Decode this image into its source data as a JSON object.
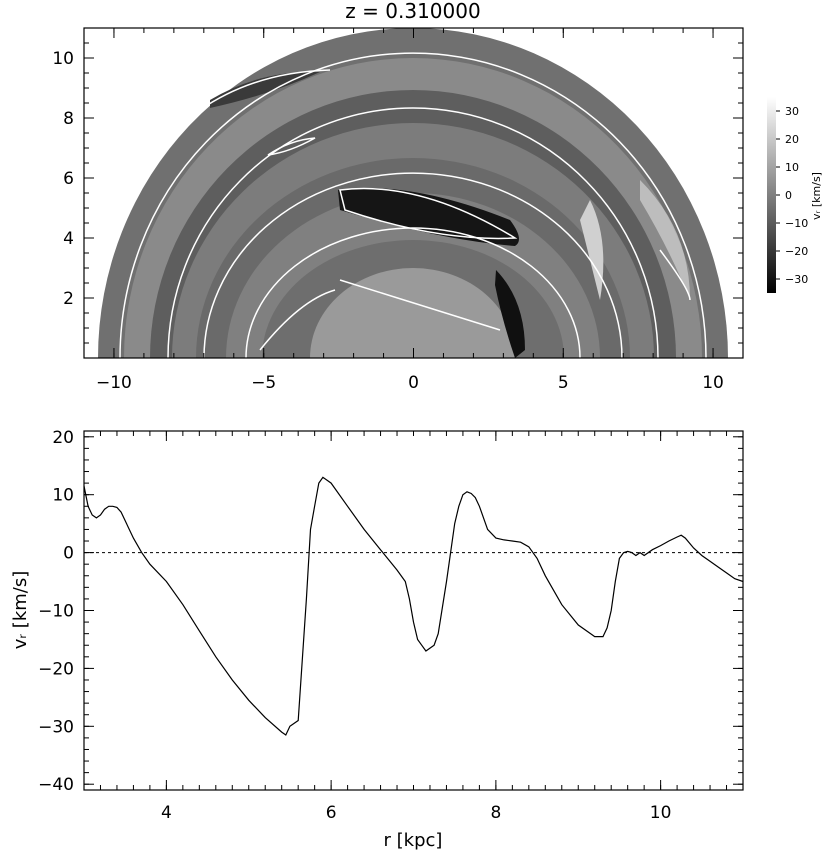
{
  "chart_data": [
    {
      "type": "heatmap",
      "title": "z  =  0.310000",
      "xlim": [
        -11,
        11
      ],
      "ylim": [
        0,
        11
      ],
      "x_ticks": [
        -10,
        -5,
        0,
        5,
        10
      ],
      "x_tick_labels": [
        "−10",
        "−5",
        "0",
        "5",
        "10"
      ],
      "y_ticks": [
        2,
        4,
        6,
        8,
        10
      ],
      "y_tick_labels": [
        "2",
        "4",
        "6",
        "8",
        "10"
      ],
      "disk_outer_radius": 11,
      "disk_inner_radius": 3,
      "grayscale_colormap": true,
      "colorbar": {
        "label": "vᵣ [km/s]",
        "range": [
          -35,
          35
        ],
        "ticks": [
          30,
          20,
          10,
          0,
          -10,
          -20,
          -30
        ],
        "tick_labels": [
          "30",
          "20",
          "10",
          "0",
          "−10",
          "−20",
          "−30"
        ]
      },
      "contour_color": "#ffffff"
    },
    {
      "type": "line",
      "title": "",
      "xlabel": "r [kpc]",
      "ylabel": "vᵣ [km/s]",
      "xlim": [
        3,
        11
      ],
      "ylim": [
        -41,
        21
      ],
      "x_ticks": [
        4,
        6,
        8,
        10
      ],
      "x_tick_labels": [
        "4",
        "6",
        "8",
        "10"
      ],
      "y_ticks": [
        20,
        10,
        0,
        -10,
        -20,
        -30,
        -40
      ],
      "y_tick_labels": [
        "20",
        "10",
        "0",
        "−10",
        "−20",
        "−30",
        "−40"
      ],
      "reference_line": {
        "y": 0,
        "style": "dotted"
      },
      "series": [
        {
          "x": [
            3.0,
            3.05,
            3.1,
            3.15,
            3.2,
            3.25,
            3.3,
            3.35,
            3.4,
            3.45,
            3.5,
            3.6,
            3.7,
            3.8,
            4.0,
            4.2,
            4.4,
            4.6,
            4.8,
            5.0,
            5.2,
            5.4,
            5.45,
            5.5,
            5.6,
            5.7,
            5.75,
            5.8,
            5.85,
            5.9,
            6.0,
            6.2,
            6.4,
            6.6,
            6.8,
            6.9,
            6.95,
            7.0,
            7.05,
            7.1,
            7.15,
            7.2,
            7.25,
            7.3,
            7.4,
            7.5,
            7.55,
            7.6,
            7.65,
            7.7,
            7.75,
            7.8,
            7.9,
            8.0,
            8.1,
            8.2,
            8.3,
            8.4,
            8.5,
            8.6,
            8.8,
            9.0,
            9.2,
            9.3,
            9.35,
            9.4,
            9.45,
            9.5,
            9.55,
            9.6,
            9.65,
            9.7,
            9.75,
            9.8,
            9.9,
            10.0,
            10.1,
            10.2,
            10.25,
            10.3,
            10.4,
            10.5,
            10.6,
            10.7,
            10.8,
            10.9,
            11.0
          ],
          "y": [
            11.5,
            8.0,
            6.5,
            6.0,
            6.5,
            7.5,
            8.0,
            8.0,
            7.8,
            7.0,
            5.5,
            2.5,
            0.0,
            -2.0,
            -5.0,
            -9.0,
            -13.5,
            -18.0,
            -22.0,
            -25.5,
            -28.5,
            -31.0,
            -31.5,
            -30.0,
            -29.0,
            -8.0,
            4.0,
            8.0,
            12.0,
            13.0,
            12.0,
            8.0,
            4.0,
            0.5,
            -3.0,
            -5.0,
            -8.0,
            -12.0,
            -15.0,
            -16.0,
            -17.0,
            -16.5,
            -16.0,
            -14.0,
            -5.0,
            5.0,
            8.0,
            10.0,
            10.5,
            10.2,
            9.5,
            8.0,
            4.0,
            2.5,
            2.2,
            2.0,
            1.8,
            1.0,
            -1.0,
            -4.0,
            -9.0,
            -12.5,
            -14.5,
            -14.5,
            -13.0,
            -10.0,
            -5.0,
            -1.0,
            0.0,
            0.2,
            0.0,
            -0.5,
            0.0,
            -0.5,
            0.5,
            1.2,
            2.0,
            2.7,
            3.0,
            2.5,
            0.8,
            -0.5,
            -1.5,
            -2.5,
            -3.5,
            -4.5,
            -5.0
          ]
        }
      ]
    }
  ]
}
